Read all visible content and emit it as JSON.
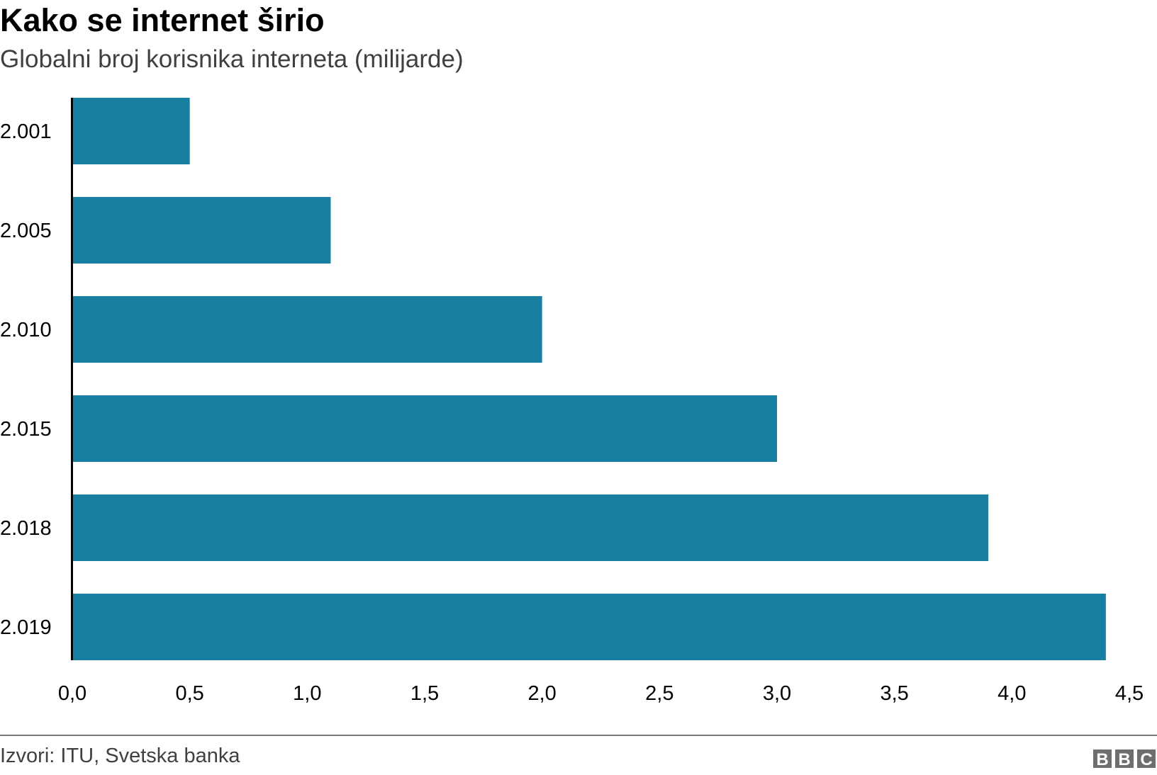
{
  "chart_data": {
    "type": "bar",
    "orientation": "horizontal",
    "title": "Kako se internet širio",
    "subtitle": "Globalni broj korisnika interneta (milijarde)",
    "categories": [
      "2.001",
      "2.005",
      "2.010",
      "2.015",
      "2.018",
      "2.019"
    ],
    "values": [
      0.5,
      1.1,
      2.0,
      3.0,
      3.9,
      4.4
    ],
    "xlabel": "",
    "ylabel": "",
    "xlim": [
      0,
      4.5
    ],
    "xticks": [
      "0,0",
      "0,5",
      "1,0",
      "1,5",
      "2,0",
      "2,5",
      "3,0",
      "3,5",
      "4,0",
      "4,5"
    ],
    "grid": false,
    "bar_color": "#1780a1",
    "source": "Izvori: ITU, Svetska banka",
    "logo": "BBC"
  }
}
